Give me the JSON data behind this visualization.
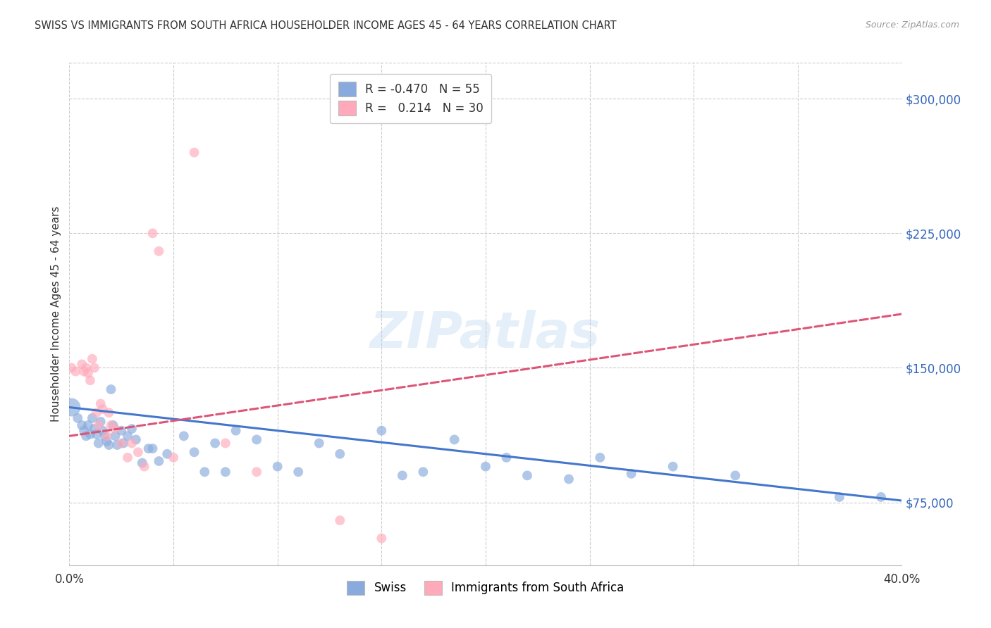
{
  "title": "SWISS VS IMMIGRANTS FROM SOUTH AFRICA HOUSEHOLDER INCOME AGES 45 - 64 YEARS CORRELATION CHART",
  "source": "Source: ZipAtlas.com",
  "ylabel": "Householder Income Ages 45 - 64 years",
  "xlim": [
    0.0,
    0.4
  ],
  "ylim": [
    40000,
    320000
  ],
  "yticks": [
    75000,
    150000,
    225000,
    300000
  ],
  "ytick_labels": [
    "$75,000",
    "$150,000",
    "$225,000",
    "$300,000"
  ],
  "xticks": [
    0.0,
    0.05,
    0.1,
    0.15,
    0.2,
    0.25,
    0.3,
    0.35,
    0.4
  ],
  "xtick_labels": [
    "0.0%",
    "",
    "",
    "",
    "",
    "",
    "",
    "",
    "40.0%"
  ],
  "bg_color": "#ffffff",
  "grid_color": "#cccccc",
  "watermark": "ZIPatlas",
  "blue_color": "#88aadd",
  "pink_color": "#ffaabb",
  "blue_line_color": "#4477cc",
  "pink_line_color": "#dd5577",
  "legend_R_blue": "-0.470",
  "legend_N_blue": "55",
  "legend_R_pink": "0.214",
  "legend_N_pink": "30",
  "blue_scatter_x": [
    0.001,
    0.004,
    0.006,
    0.007,
    0.008,
    0.009,
    0.01,
    0.011,
    0.012,
    0.013,
    0.014,
    0.015,
    0.016,
    0.017,
    0.018,
    0.019,
    0.02,
    0.021,
    0.022,
    0.023,
    0.025,
    0.026,
    0.028,
    0.03,
    0.032,
    0.035,
    0.038,
    0.04,
    0.043,
    0.047,
    0.055,
    0.06,
    0.065,
    0.07,
    0.075,
    0.08,
    0.09,
    0.1,
    0.11,
    0.12,
    0.13,
    0.15,
    0.16,
    0.17,
    0.185,
    0.2,
    0.21,
    0.22,
    0.24,
    0.255,
    0.27,
    0.29,
    0.32,
    0.37,
    0.39
  ],
  "blue_scatter_y": [
    128000,
    122000,
    118000,
    115000,
    112000,
    118000,
    113000,
    122000,
    116000,
    113000,
    108000,
    120000,
    115000,
    112000,
    109000,
    107000,
    138000,
    118000,
    112000,
    107000,
    115000,
    108000,
    112000,
    116000,
    110000,
    97000,
    105000,
    105000,
    98000,
    102000,
    112000,
    103000,
    92000,
    108000,
    92000,
    115000,
    110000,
    95000,
    92000,
    108000,
    102000,
    115000,
    90000,
    92000,
    110000,
    95000,
    100000,
    90000,
    88000,
    100000,
    91000,
    95000,
    90000,
    78000,
    78000
  ],
  "pink_scatter_x": [
    0.001,
    0.003,
    0.006,
    0.007,
    0.008,
    0.009,
    0.01,
    0.011,
    0.012,
    0.013,
    0.014,
    0.015,
    0.016,
    0.018,
    0.019,
    0.02,
    0.022,
    0.025,
    0.028,
    0.03,
    0.033,
    0.036,
    0.04,
    0.043,
    0.05,
    0.06,
    0.075,
    0.09,
    0.13,
    0.15
  ],
  "pink_scatter_y": [
    150000,
    148000,
    152000,
    148000,
    150000,
    147000,
    143000,
    155000,
    150000,
    125000,
    118000,
    130000,
    127000,
    112000,
    125000,
    118000,
    116000,
    108000,
    100000,
    108000,
    103000,
    95000,
    225000,
    215000,
    100000,
    270000,
    108000,
    92000,
    65000,
    55000
  ],
  "blue_trend_x": [
    0.0,
    0.4
  ],
  "blue_trend_y": [
    128000,
    76000
  ],
  "pink_trend_x": [
    0.0,
    0.4
  ],
  "pink_trend_y": [
    112000,
    180000
  ]
}
